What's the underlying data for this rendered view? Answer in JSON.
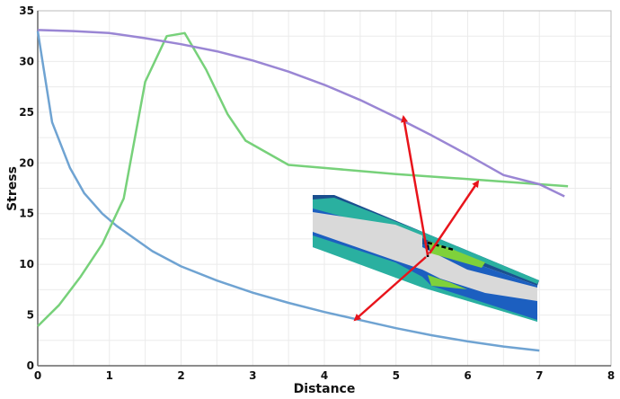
{
  "chart_data": {
    "type": "line",
    "title": "",
    "xlabel": "Distance",
    "ylabel": "Stress",
    "xlim": [
      0,
      8
    ],
    "ylim": [
      0,
      35
    ],
    "xticks": [
      "0",
      "1",
      "2",
      "3",
      "4",
      "5",
      "6",
      "7",
      "8"
    ],
    "yticks": [
      "0",
      "5",
      "10",
      "15",
      "20",
      "25",
      "30",
      "35"
    ],
    "grid": true,
    "legend": "none",
    "inset": "3D finite element stress contour model with red arrows pointing to the curves",
    "series": [
      {
        "color": "#6fa3d2",
        "x": [
          0,
          0.2,
          0.45,
          0.65,
          0.9,
          1.1,
          1.6,
          2,
          2.5,
          3,
          3.5,
          4,
          4.5,
          5,
          5.5,
          6,
          6.5,
          7
        ],
        "y": [
          33,
          24,
          19.5,
          17,
          15,
          13.8,
          11.3,
          9.8,
          8.4,
          7.2,
          6.2,
          5.3,
          4.5,
          3.7,
          3.0,
          2.4,
          1.9,
          1.5
        ]
      },
      {
        "color": "#77d17a",
        "x": [
          0,
          0.3,
          0.6,
          0.9,
          1.2,
          1.5,
          1.8,
          2.05,
          2.35,
          2.65,
          2.9,
          3.2,
          3.5,
          4,
          5,
          6,
          7,
          7.4
        ],
        "y": [
          3.9,
          6,
          8.8,
          12,
          16.5,
          28,
          32.5,
          32.8,
          29.2,
          24.8,
          22.2,
          21,
          19.8,
          19.5,
          18.9,
          18.4,
          17.9,
          17.7
        ]
      },
      {
        "color": "#9a86d4",
        "x": [
          0,
          0.5,
          1,
          1.5,
          2,
          2.5,
          3,
          3.5,
          4,
          4.5,
          5,
          5.5,
          6,
          6.5,
          7,
          7.35
        ],
        "y": [
          33.1,
          33,
          32.8,
          32.3,
          31.7,
          31,
          30.1,
          29,
          27.7,
          26.2,
          24.5,
          22.7,
          20.8,
          18.8,
          17.9,
          16.7
        ]
      }
    ],
    "annotation_color": "#e8141b"
  }
}
